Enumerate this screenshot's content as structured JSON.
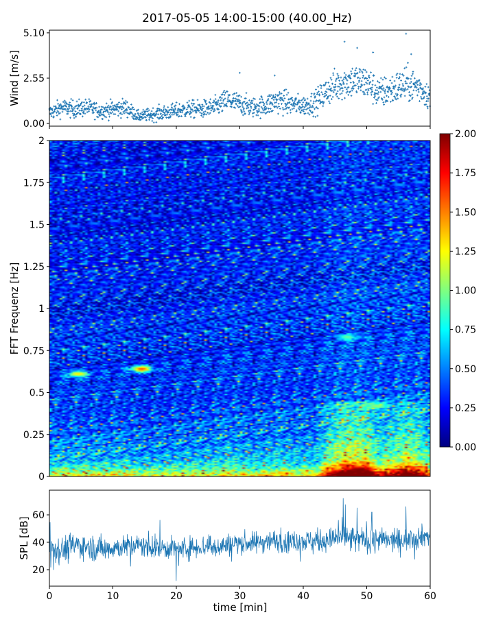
{
  "title": "2017-05-05 14:00-15:00 (40.00_Hz)",
  "chart_data": [
    {
      "type": "scatter",
      "panel": "wind",
      "ylabel": "Wind [m/s]",
      "xlim": [
        0,
        60
      ],
      "ylim": [
        -0.15,
        5.25
      ],
      "yticks": [
        "0.00",
        "2.55",
        "5.10"
      ],
      "marker_color": "#1f77b4",
      "x": [
        0,
        2,
        4,
        6,
        8,
        10,
        12,
        14,
        16,
        18,
        20,
        22,
        24,
        26,
        28,
        30,
        32,
        34,
        36,
        38,
        40,
        42,
        44,
        46,
        48,
        50,
        52,
        54,
        56,
        58,
        60
      ],
      "y": [
        0.6,
        0.9,
        0.8,
        0.9,
        0.7,
        0.8,
        0.9,
        0.4,
        0.5,
        0.6,
        0.7,
        0.8,
        0.8,
        0.9,
        1.3,
        1.1,
        0.9,
        1.0,
        1.3,
        1.1,
        1.0,
        1.2,
        1.9,
        2.3,
        2.4,
        2.3,
        1.7,
        1.9,
        2.2,
        2.1,
        1.5
      ],
      "spread": [
        0.35,
        0.4,
        0.4,
        0.4,
        0.35,
        0.4,
        0.4,
        0.25,
        0.3,
        0.35,
        0.35,
        0.4,
        0.4,
        0.45,
        0.55,
        0.5,
        0.45,
        0.5,
        0.6,
        0.5,
        0.45,
        0.55,
        0.7,
        0.8,
        0.8,
        0.8,
        0.7,
        0.75,
        0.8,
        0.75,
        0.6
      ],
      "highlights": [
        {
          "x": 30,
          "y": 2.85
        },
        {
          "x": 46.5,
          "y": 4.6
        },
        {
          "x": 48.5,
          "y": 4.25
        },
        {
          "x": 51.0,
          "y": 4.0
        },
        {
          "x": 56.2,
          "y": 5.05
        },
        {
          "x": 57.0,
          "y": 3.9
        },
        {
          "x": 35.5,
          "y": 2.7
        }
      ]
    },
    {
      "type": "heatmap",
      "panel": "spectrogram",
      "ylabel": "FFT Frequenz [Hz]",
      "xlim": [
        0,
        60
      ],
      "ylim": [
        0,
        2
      ],
      "yticks": [
        "0",
        "0.25",
        "0.5",
        "0.75",
        "1",
        "1.25",
        "1.5",
        "1.75",
        "2"
      ],
      "colormap": "jet",
      "colorbar": {
        "min": 0,
        "max": 2,
        "ticks": [
          "0.00",
          "0.25",
          "0.50",
          "0.75",
          "1.00",
          "1.25",
          "1.50",
          "1.75",
          "2.00"
        ]
      },
      "frequency_band_mean": [
        {
          "f": 0.0,
          "v": 1.45
        },
        {
          "f": 0.05,
          "v": 0.95
        },
        {
          "f": 0.1,
          "v": 0.7
        },
        {
          "f": 0.25,
          "v": 0.5
        },
        {
          "f": 0.5,
          "v": 0.4
        },
        {
          "f": 1.0,
          "v": 0.32
        },
        {
          "f": 1.5,
          "v": 0.3
        },
        {
          "f": 2.0,
          "v": 0.3
        }
      ],
      "highlights": [
        {
          "x": 4.5,
          "f": 0.61,
          "v": 1.3
        },
        {
          "x": 14.5,
          "f": 0.64,
          "v": 1.6
        },
        {
          "x": 49.0,
          "f": 0.04,
          "v": 2.0
        },
        {
          "x": 51.5,
          "f": 0.42,
          "v": 1.05
        },
        {
          "x": 47.0,
          "f": 0.83,
          "v": 0.95
        }
      ]
    },
    {
      "type": "line",
      "panel": "spl",
      "ylabel": "SPL [dB]",
      "xlabel": "time [min]",
      "xlim": [
        0,
        60
      ],
      "ylim": [
        8,
        78
      ],
      "yticks": [
        "20",
        "40",
        "60"
      ],
      "xticks": [
        "0",
        "10",
        "20",
        "30",
        "40",
        "50",
        "60"
      ],
      "line_color": "#1f77b4",
      "x": [
        0,
        2,
        4,
        6,
        8,
        10,
        12,
        14,
        16,
        18,
        20,
        22,
        24,
        26,
        28,
        30,
        32,
        34,
        36,
        38,
        40,
        42,
        44,
        46,
        48,
        50,
        52,
        54,
        56,
        58,
        60
      ],
      "y": [
        37,
        34,
        38,
        37,
        35,
        36,
        37,
        38,
        36,
        36,
        35,
        36,
        37,
        37,
        38,
        40,
        39,
        41,
        41,
        41,
        41,
        41,
        42,
        43,
        42,
        42,
        42,
        41,
        42,
        44,
        45
      ],
      "spread": [
        4,
        5,
        5,
        4,
        5,
        4,
        4,
        4,
        4,
        4,
        4,
        4,
        4,
        4,
        4,
        4,
        4,
        4,
        4,
        4,
        4,
        4,
        4,
        5,
        5,
        5,
        4,
        4,
        4,
        4,
        4
      ],
      "spikes": [
        {
          "x": 46.3,
          "y": 72
        },
        {
          "x": 48.5,
          "y": 65
        },
        {
          "x": 50.8,
          "y": 62
        },
        {
          "x": 56.2,
          "y": 66
        },
        {
          "x": 20.0,
          "y": 12
        }
      ]
    }
  ]
}
